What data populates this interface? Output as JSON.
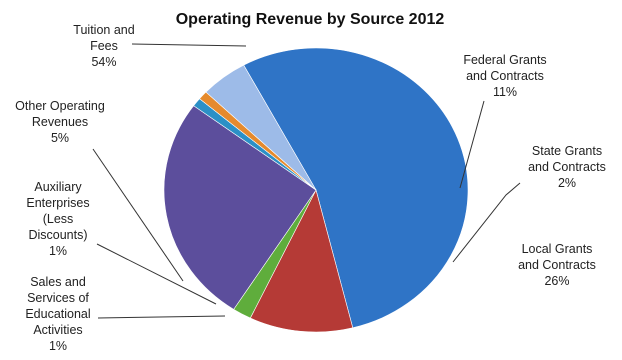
{
  "chart_data": {
    "type": "pie",
    "title": "Operating Revenue by Source 2012",
    "slices": [
      {
        "label": [
          "Tuition and",
          "Fees"
        ],
        "value": 54,
        "pct_text": "54%",
        "color": "#2f74c6"
      },
      {
        "label": [
          "Federal Grants",
          "and Contracts"
        ],
        "value": 11,
        "pct_text": "11%",
        "color": "#b53a36"
      },
      {
        "label": [
          "State Grants",
          "and Contracts"
        ],
        "value": 2,
        "pct_text": "2%",
        "color": "#5fad3c"
      },
      {
        "label": [
          "Local Grants",
          "and Contracts"
        ],
        "value": 26,
        "pct_text": "26%",
        "color": "#5c4e9c"
      },
      {
        "label": [
          "Sales and",
          "Services of",
          "Educational",
          "Activities"
        ],
        "value": 1,
        "pct_text": "1%",
        "color": "#2b90c6"
      },
      {
        "label": [
          "Auxiliary",
          "Enterprises",
          "(Less",
          "Discounts)"
        ],
        "value": 1,
        "pct_text": "1%",
        "color": "#e58a2d"
      },
      {
        "label": [
          "Other Operating",
          "Revenues"
        ],
        "value": 5,
        "pct_text": "5%",
        "color": "#9dbbe8"
      }
    ]
  }
}
